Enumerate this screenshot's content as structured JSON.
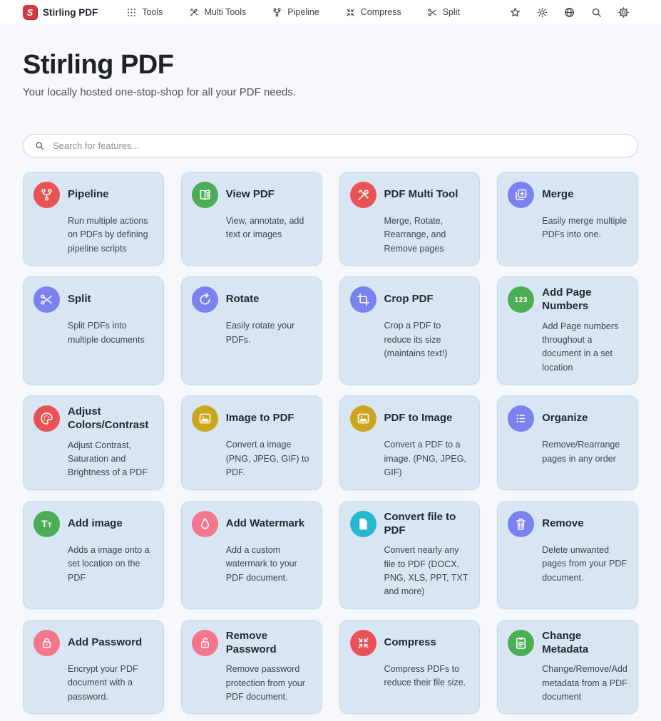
{
  "navbar": {
    "brand": "Stirling PDF",
    "logo_letter": "S",
    "logo_color": "#d63840",
    "items": [
      {
        "label": "Tools",
        "icon": "apps-grid-icon"
      },
      {
        "label": "Multi Tools",
        "icon": "multi-tool-icon"
      },
      {
        "label": "Pipeline",
        "icon": "pipeline-icon"
      },
      {
        "label": "Compress",
        "icon": "compress-icon"
      },
      {
        "label": "Split",
        "icon": "scissors-icon"
      }
    ],
    "action_icons": [
      "star-icon",
      "theme-sun-icon",
      "language-globe-icon",
      "search-icon",
      "settings-gear-icon"
    ]
  },
  "hero": {
    "title": "Stirling PDF",
    "subtitle": "Your locally hosted one-stop-shop for all your PDF needs."
  },
  "search": {
    "placeholder": "Search for features..."
  },
  "card_style": {
    "background": "#d8e6f3",
    "border": "#c7daea"
  },
  "cards": [
    {
      "title": "Pipeline",
      "description": "Run multiple actions on PDFs by defining pipeline scripts",
      "icon": "pipeline-icon",
      "color": "#ea5356"
    },
    {
      "title": "View PDF",
      "description": "View, annotate, add text or images",
      "icon": "book-open-icon",
      "color": "#4bae54"
    },
    {
      "title": "PDF Multi Tool",
      "description": "Merge, Rotate, Rearrange, and Remove pages",
      "icon": "multi-tool-icon",
      "color": "#ea5356"
    },
    {
      "title": "Merge",
      "description": "Easily merge multiple PDFs into one.",
      "icon": "merge-icon",
      "color": "#7b82ef"
    },
    {
      "title": "Split",
      "description": "Split PDFs into multiple documents",
      "icon": "scissors-icon",
      "color": "#7b82ef"
    },
    {
      "title": "Rotate",
      "description": "Easily rotate your PDFs.",
      "icon": "rotate-icon",
      "color": "#7b82ef"
    },
    {
      "title": "Crop PDF",
      "description": "Crop a PDF to reduce its size (maintains text!)",
      "icon": "crop-icon",
      "color": "#7b82ef"
    },
    {
      "title": "Add Page Numbers",
      "description": "Add Page numbers throughout a document in a set location",
      "icon": "page-numbers-123-icon",
      "color": "#4bae54"
    },
    {
      "title": "Adjust Colors/Contrast",
      "description": "Adjust Contrast, Saturation and Brightness of a PDF",
      "icon": "palette-icon",
      "color": "#ea5356"
    },
    {
      "title": "Image to PDF",
      "description": "Convert a image (PNG, JPEG, GIF) to PDF.",
      "icon": "image-icon",
      "color": "#cca61e"
    },
    {
      "title": "PDF to Image",
      "description": "Convert a PDF to a image. (PNG, JPEG, GIF)",
      "icon": "image-icon",
      "color": "#cca61e"
    },
    {
      "title": "Organize",
      "description": "Remove/Rearrange pages in any order",
      "icon": "list-icon",
      "color": "#7b82ef"
    },
    {
      "title": "Add image",
      "description": "Adds a image onto a set location on the PDF",
      "icon": "text-Tr-icon",
      "color": "#4bae54"
    },
    {
      "title": "Add Watermark",
      "description": "Add a custom watermark to your PDF document.",
      "icon": "droplet-icon",
      "color": "#f5758c"
    },
    {
      "title": "Convert file to PDF",
      "description": "Convert nearly any file to PDF (DOCX, PNG, XLS, PPT, TXT and more)",
      "icon": "file-icon",
      "color": "#25b9cd"
    },
    {
      "title": "Remove",
      "description": "Delete unwanted pages from your PDF document.",
      "icon": "trash-icon",
      "color": "#7b82ef"
    },
    {
      "title": "Add Password",
      "description": "Encrypt your PDF document with a password.",
      "icon": "lock-icon",
      "color": "#f5758c"
    },
    {
      "title": "Remove Password",
      "description": "Remove password protection from your PDF document.",
      "icon": "lock-open-icon",
      "color": "#f5758c"
    },
    {
      "title": "Compress",
      "description": "Compress PDFs to reduce their file size.",
      "icon": "compress-icon",
      "color": "#ea5356"
    },
    {
      "title": "Change Metadata",
      "description": "Change/Remove/Add metadata from a PDF document",
      "icon": "clipboard-icon",
      "color": "#4bae54"
    }
  ]
}
